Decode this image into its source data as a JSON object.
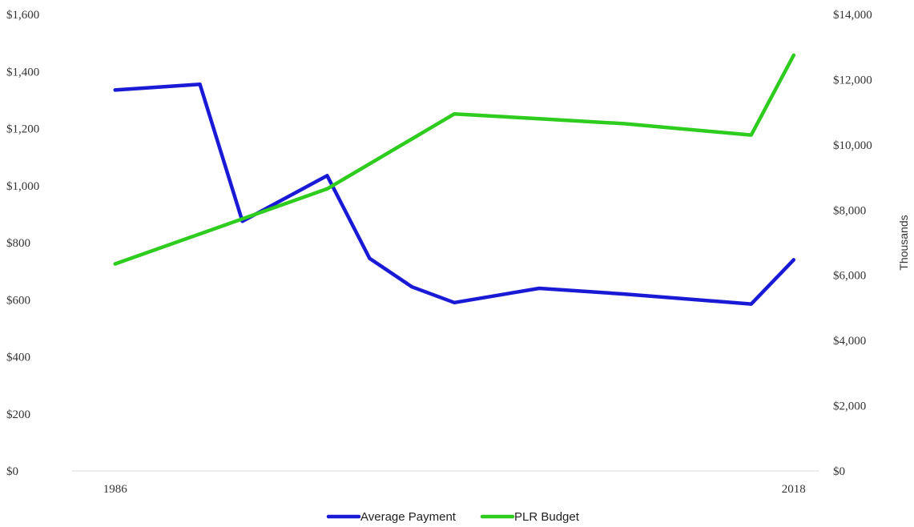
{
  "chart_data": {
    "type": "line",
    "title": "",
    "x": [
      1986,
      1988,
      1990,
      1992,
      1994,
      1996,
      1998,
      2000,
      2002,
      2004,
      2006,
      2008,
      2010,
      2012,
      2014,
      2016,
      2018
    ],
    "x_tick_labels": [
      "1986",
      "2018"
    ],
    "y_left": {
      "label": "",
      "ylim": [
        0,
        1600
      ],
      "ticks": [
        0,
        200,
        400,
        600,
        800,
        1000,
        1200,
        1400,
        1600
      ],
      "tick_labels": [
        "$0",
        "$200",
        "$400",
        "$600",
        "$800",
        "$1,000",
        "$1,200",
        "$1,400",
        "$1,600"
      ]
    },
    "y_right": {
      "label": "Thousands",
      "ylim": [
        0,
        14000
      ],
      "ticks": [
        0,
        2000,
        4000,
        6000,
        8000,
        10000,
        12000,
        14000
      ],
      "tick_labels": [
        "$0",
        "$2,000",
        "$4,000",
        "$6,000",
        "$8,000",
        "$10,000",
        "$12,000",
        "$14,000"
      ]
    },
    "series": [
      {
        "name": "Average Payment",
        "axis": "left",
        "color": "#1a1ad6",
        "points": [
          [
            1986,
            1335
          ],
          [
            1990,
            1355
          ],
          [
            1992,
            875
          ],
          [
            1996,
            1035
          ],
          [
            1998,
            745
          ],
          [
            2000,
            645
          ],
          [
            2002,
            590
          ],
          [
            2006,
            640
          ],
          [
            2010,
            620
          ],
          [
            2016,
            585
          ],
          [
            2018,
            740
          ]
        ]
      },
      {
        "name": "PLR Budget",
        "axis": "right",
        "color": "#2ecc1f",
        "points": [
          [
            1986,
            6350
          ],
          [
            1996,
            8650
          ],
          [
            2002,
            10950
          ],
          [
            2006,
            10800
          ],
          [
            2010,
            10650
          ],
          [
            2016,
            10300
          ],
          [
            2018,
            12750
          ]
        ]
      }
    ],
    "grid": false,
    "legend_position": "bottom"
  }
}
